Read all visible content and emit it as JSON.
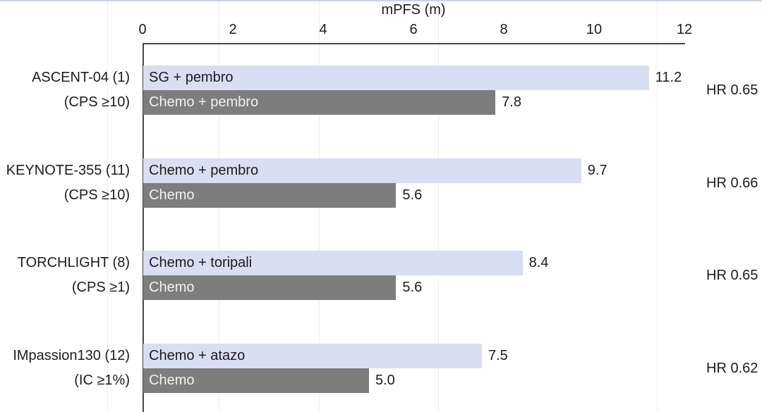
{
  "chart_data": {
    "type": "bar",
    "orientation": "horizontal",
    "title": "mPFS (m)",
    "xlabel": "mPFS (m)",
    "xlim": [
      0,
      12
    ],
    "xticks": [
      "0",
      "2",
      "4",
      "6",
      "8",
      "10",
      "12"
    ],
    "grid": false,
    "colors": {
      "experimental_bar": "#d9dff2",
      "control_bar": "#7d7d7d",
      "axis_line": "#474747"
    },
    "groups": [
      {
        "trial": "ASCENT-04 (1)",
        "criteria": "(CPS ≥10)",
        "hr": "HR 0.65",
        "bars": [
          {
            "label": "SG + pembro",
            "value": 11.2,
            "type": "experimental"
          },
          {
            "label": "Chemo + pembro",
            "value": 7.8,
            "type": "control"
          }
        ]
      },
      {
        "trial": "KEYNOTE-355 (11)",
        "criteria": "(CPS ≥10)",
        "hr": "HR 0.66",
        "bars": [
          {
            "label": "Chemo + pembro",
            "value": 9.7,
            "type": "experimental"
          },
          {
            "label": "Chemo",
            "value": 5.6,
            "type": "control"
          }
        ]
      },
      {
        "trial": "TORCHLIGHT (8)",
        "criteria": "(CPS ≥1)",
        "hr": "HR 0.65",
        "bars": [
          {
            "label": "Chemo + toripali",
            "value": 8.4,
            "type": "experimental"
          },
          {
            "label": "Chemo",
            "value": 5.6,
            "type": "control"
          }
        ]
      },
      {
        "trial": "IMpassion130 (12)",
        "criteria": "(IC ≥1%)",
        "hr": "HR 0.62",
        "bars": [
          {
            "label": "Chemo + atazo",
            "value": 7.5,
            "type": "experimental"
          },
          {
            "label": "Chemo",
            "value": 5.0,
            "type": "control"
          }
        ]
      }
    ]
  }
}
